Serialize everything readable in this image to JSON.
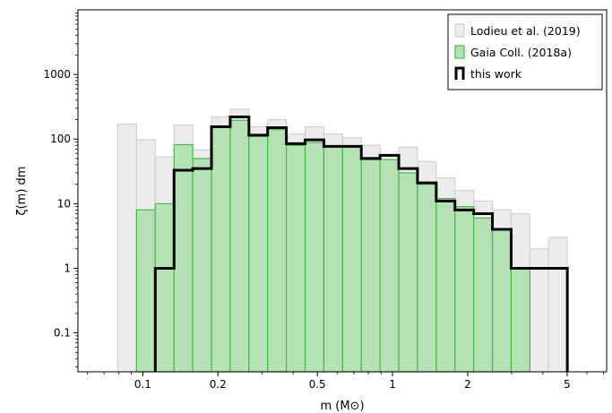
{
  "chart_data": {
    "type": "bar",
    "subtype": "histogram",
    "xlabel": "m (M⊙)",
    "ylabel": "ζ(m) dm",
    "xscale": "log",
    "yscale": "log",
    "xlim": [
      0.055,
      7.2
    ],
    "ylim": [
      0.025,
      10000
    ],
    "grid": false,
    "legend_position": "top-right",
    "x_ticks": [
      {
        "value": 0.1,
        "label": "0.1"
      },
      {
        "value": 0.2,
        "label": "0.2"
      },
      {
        "value": 0.5,
        "label": "0.5"
      },
      {
        "value": 1,
        "label": "1"
      },
      {
        "value": 2,
        "label": "2"
      },
      {
        "value": 5,
        "label": "5"
      }
    ],
    "y_ticks": [
      {
        "value": 0.1,
        "label": "0.1"
      },
      {
        "value": 1,
        "label": "1"
      },
      {
        "value": 10,
        "label": "10"
      },
      {
        "value": 100,
        "label": "100"
      },
      {
        "value": 1000,
        "label": "1000"
      }
    ],
    "bin_edges": [
      0.0794,
      0.0944,
      0.1122,
      0.1334,
      0.1585,
      0.1884,
      0.2239,
      0.2661,
      0.3162,
      0.3758,
      0.4467,
      0.5309,
      0.631,
      0.7499,
      0.8913,
      1.0593,
      1.2589,
      1.4962,
      1.7783,
      2.1135,
      2.5119,
      2.9854,
      3.5481,
      4.217,
      5.0119
    ],
    "series": [
      {
        "name": "Lodieu et al. (2019)",
        "style": "filled",
        "color": "#ececec",
        "edge_color": "#d2d2d2",
        "values": [
          170,
          98,
          53,
          165,
          68,
          220,
          290,
          155,
          200,
          120,
          155,
          120,
          105,
          80,
          55,
          75,
          45,
          25,
          16,
          11,
          8,
          7,
          2,
          3
        ]
      },
      {
        "name": "Gaia Coll. (2018a)",
        "style": "filled",
        "color": "#b4e2b4",
        "edge_color": "#44bb44",
        "values": [
          null,
          8,
          10,
          82,
          50,
          160,
          195,
          110,
          140,
          80,
          88,
          78,
          75,
          52,
          48,
          30,
          20,
          12,
          9,
          6,
          4,
          1,
          null,
          null
        ]
      },
      {
        "name": "this work",
        "style": "step",
        "color": "#000000",
        "values": [
          null,
          null,
          1,
          33,
          35,
          155,
          220,
          115,
          150,
          85,
          97,
          77,
          77,
          50,
          56,
          35,
          21,
          11,
          8,
          7,
          4,
          1,
          1,
          1
        ]
      }
    ]
  }
}
